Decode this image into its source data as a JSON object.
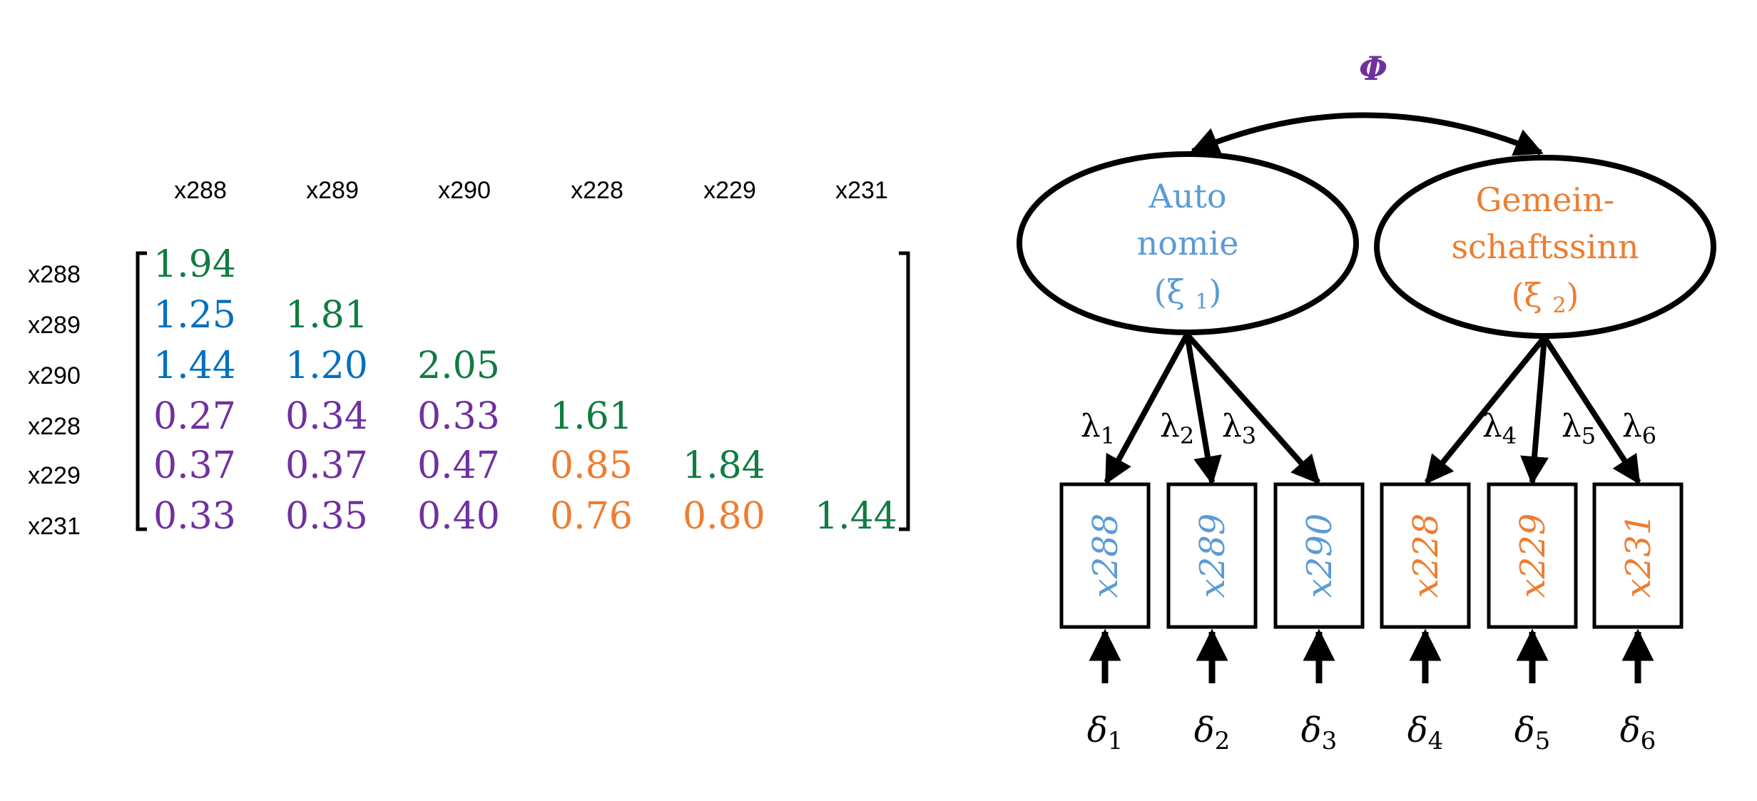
{
  "colors": {
    "green": "#107C41",
    "blue": "#0070C0",
    "purple": "#7030A0",
    "orange": "#ED7D31",
    "light_blue": "#5B9BD5",
    "black": "#000000"
  },
  "matrix": {
    "column_headers": [
      "x288",
      "x289",
      "x290",
      "x228",
      "x229",
      "x231"
    ],
    "row_headers": [
      "x288",
      "x289",
      "x290",
      "x228",
      "x229",
      "x231"
    ],
    "rows": [
      {
        "values": [
          "1.94"
        ],
        "colors": [
          "#107C41"
        ]
      },
      {
        "values": [
          "1.25",
          "1.81"
        ],
        "colors": [
          "#0070C0",
          "#107C41"
        ]
      },
      {
        "values": [
          "1.44",
          "1.20",
          "2.05"
        ],
        "colors": [
          "#0070C0",
          "#0070C0",
          "#107C41"
        ]
      },
      {
        "values": [
          "0.27",
          "0.34",
          "0.33",
          "1.61"
        ],
        "colors": [
          "#7030A0",
          "#7030A0",
          "#7030A0",
          "#107C41"
        ]
      },
      {
        "values": [
          "0.37",
          "0.37",
          "0.47",
          "0.85",
          "1.84"
        ],
        "colors": [
          "#7030A0",
          "#7030A0",
          "#7030A0",
          "#ED7D31",
          "#107C41"
        ]
      },
      {
        "values": [
          "0.33",
          "0.35",
          "0.40",
          "0.76",
          "0.80",
          "1.44"
        ],
        "colors": [
          "#7030A0",
          "#7030A0",
          "#7030A0",
          "#ED7D31",
          "#ED7D31",
          "#107C41"
        ]
      }
    ]
  },
  "diagram": {
    "covariance_label": "Φ",
    "latents": [
      {
        "lines": [
          "Auto",
          "nomie"
        ],
        "symbol": "(ξ",
        "sub": "1",
        "close": ")",
        "color": "#5B9BD5"
      },
      {
        "lines": [
          "Gemein-",
          "schaftssinn"
        ],
        "symbol": "(ξ",
        "sub": "2",
        "close": ")",
        "color": "#ED7D31"
      }
    ],
    "indicators": [
      {
        "label": "x288",
        "color": "#5B9BD5",
        "loading": "λ",
        "loading_sub": "1",
        "error": "δ",
        "error_sub": "1"
      },
      {
        "label": "x289",
        "color": "#5B9BD5",
        "loading": "λ",
        "loading_sub": "2",
        "error": "δ",
        "error_sub": "2"
      },
      {
        "label": "x290",
        "color": "#5B9BD5",
        "loading": "λ",
        "loading_sub": "3",
        "error": "δ",
        "error_sub": "3"
      },
      {
        "label": "x228",
        "color": "#ED7D31",
        "loading": "λ",
        "loading_sub": "4",
        "error": "δ",
        "error_sub": "4"
      },
      {
        "label": "x229",
        "color": "#ED7D31",
        "loading": "λ",
        "loading_sub": "5",
        "error": "δ",
        "error_sub": "5"
      },
      {
        "label": "x231",
        "color": "#ED7D31",
        "loading": "λ",
        "loading_sub": "6",
        "error": "δ",
        "error_sub": "6"
      }
    ]
  }
}
